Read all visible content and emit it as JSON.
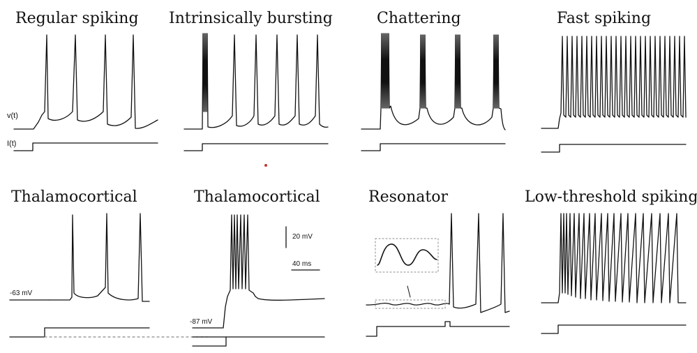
{
  "panels": [
    {
      "title": "Regular spiking"
    },
    {
      "title": "Intrinsically bursting"
    },
    {
      "title": "Chattering"
    },
    {
      "title": "Fast spiking"
    },
    {
      "title": "Thalamocortical"
    },
    {
      "title": "Thalamocortical"
    },
    {
      "title": "Resonator"
    },
    {
      "title": "Low-threshold spiking"
    }
  ],
  "labels": {
    "v_label": "v(t)",
    "i_label": "I(t)",
    "rest_63": "-63 mV",
    "rest_87": "-87 mV",
    "scale_v": "20 mV",
    "scale_t": "40 ms"
  }
}
